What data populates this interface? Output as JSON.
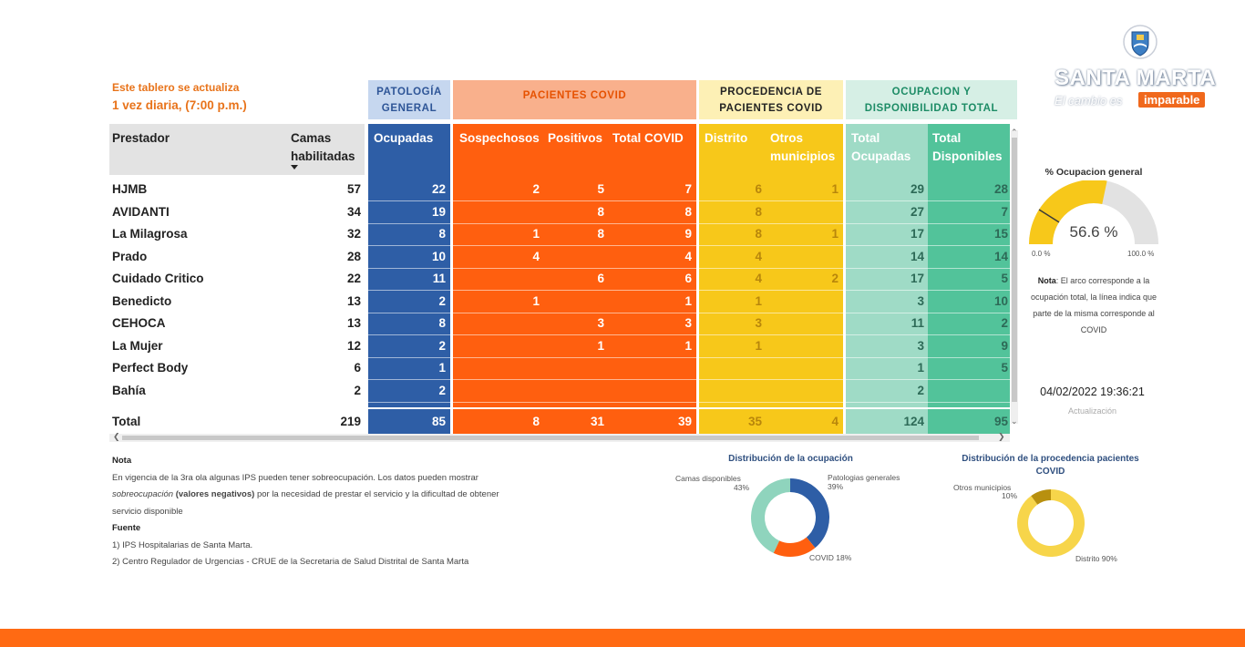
{
  "update_note": {
    "line1": "Este tablero se actualiza",
    "line2": "1 vez diaria, (7:00 p.m.)"
  },
  "groups": {
    "patologia": "PATOLOGÍA GENERAL",
    "covid": "PACIENTES COVID",
    "procedencia": "PROCEDENCIA DE PACIENTES COVID",
    "ocupacion": "OCUPACION Y DISPONIBILIDAD TOTAL"
  },
  "columns": {
    "prestador": "Prestador",
    "camas": "Camas habilitadas",
    "ocupadas": "Ocupadas",
    "sospechosos": "Sospechosos",
    "positivos": "Positivos",
    "total_covid": "Total COVID",
    "distrito": "Distrito",
    "otros": "Otros municipios",
    "total_ocupadas": "Total Ocupadas",
    "total_disponibles": "Total Disponibles"
  },
  "rows": [
    {
      "prestador": "HJMB",
      "camas": "57",
      "ocupadas": "22",
      "sospechosos": "2",
      "positivos": "5",
      "total_covid": "7",
      "distrito": "6",
      "otros": "1",
      "total_ocupadas": "29",
      "total_disponibles": "28"
    },
    {
      "prestador": "AVIDANTI",
      "camas": "34",
      "ocupadas": "19",
      "sospechosos": "",
      "positivos": "8",
      "total_covid": "8",
      "distrito": "8",
      "otros": "",
      "total_ocupadas": "27",
      "total_disponibles": "7"
    },
    {
      "prestador": "La Milagrosa",
      "camas": "32",
      "ocupadas": "8",
      "sospechosos": "1",
      "positivos": "8",
      "total_covid": "9",
      "distrito": "8",
      "otros": "1",
      "total_ocupadas": "17",
      "total_disponibles": "15"
    },
    {
      "prestador": "Prado",
      "camas": "28",
      "ocupadas": "10",
      "sospechosos": "4",
      "positivos": "",
      "total_covid": "4",
      "distrito": "4",
      "otros": "",
      "total_ocupadas": "14",
      "total_disponibles": "14"
    },
    {
      "prestador": "Cuidado Critico",
      "camas": "22",
      "ocupadas": "11",
      "sospechosos": "",
      "positivos": "6",
      "total_covid": "6",
      "distrito": "4",
      "otros": "2",
      "total_ocupadas": "17",
      "total_disponibles": "5"
    },
    {
      "prestador": "Benedicto",
      "camas": "13",
      "ocupadas": "2",
      "sospechosos": "1",
      "positivos": "",
      "total_covid": "1",
      "distrito": "1",
      "otros": "",
      "total_ocupadas": "3",
      "total_disponibles": "10"
    },
    {
      "prestador": "CEHOCA",
      "camas": "13",
      "ocupadas": "8",
      "sospechosos": "",
      "positivos": "3",
      "total_covid": "3",
      "distrito": "3",
      "otros": "",
      "total_ocupadas": "11",
      "total_disponibles": "2"
    },
    {
      "prestador": "La Mujer",
      "camas": "12",
      "ocupadas": "2",
      "sospechosos": "",
      "positivos": "1",
      "total_covid": "1",
      "distrito": "1",
      "otros": "",
      "total_ocupadas": "3",
      "total_disponibles": "9"
    },
    {
      "prestador": "Perfect Body",
      "camas": "6",
      "ocupadas": "1",
      "sospechosos": "",
      "positivos": "",
      "total_covid": "",
      "distrito": "",
      "otros": "",
      "total_ocupadas": "1",
      "total_disponibles": "5"
    },
    {
      "prestador": "Bahía",
      "camas": "2",
      "ocupadas": "2",
      "sospechosos": "",
      "positivos": "",
      "total_covid": "",
      "distrito": "",
      "otros": "",
      "total_ocupadas": "2",
      "total_disponibles": ""
    }
  ],
  "totals": {
    "prestador": "Total",
    "camas": "219",
    "ocupadas": "85",
    "sospechosos": "8",
    "positivos": "31",
    "total_covid": "39",
    "distrito": "35",
    "otros": "4",
    "total_ocupadas": "124",
    "total_disponibles": "95"
  },
  "brand": {
    "name": "SANTA MARTA",
    "slogan": "El cambio es",
    "badge": "imparable"
  },
  "gauge": {
    "title": "% Ocupacion general",
    "value_text": "56.6 %",
    "value": 56.6,
    "covid_marker": 18,
    "min_label": "0.0 %",
    "max_label": "100.0 %",
    "fill_color": "#f7c81a",
    "track_color": "#e2e2e2"
  },
  "gauge_note": {
    "bold": "Nota",
    "text": ": El arco corresponde a la ocupación total, la línea indica que parte de la misma corresponde al COVID"
  },
  "timestamp": {
    "value": "04/02/2022 19:36:21",
    "label": "Actualización"
  },
  "notes": {
    "title": "Nota",
    "line1": "En vigencia de la 3ra ola algunas IPS pueden tener sobreocupación. Los datos pueden mostrar",
    "line2_italic": "sobreocupación",
    "line2_bold": " (valores negativos)",
    "line2_rest": " por la necesidad de prestar el servicio y la dificultad de obtener",
    "line3": "servicio disponible",
    "source_title": "Fuente",
    "source1": "1) IPS Hospitalarias de Santa Marta.",
    "source2": "2) Centro Regulador de Urgencias - CRUE de la Secretaria de Salud Distrital de Santa Marta"
  },
  "chart_data": [
    {
      "type": "pie",
      "title": "Distribución de la ocupación",
      "categories": [
        "Patologias generales",
        "COVID",
        "Camas disponibles"
      ],
      "values": [
        39,
        18,
        43
      ],
      "colors": [
        "#2e5ea6",
        "#ff5f0f",
        "#8fd4bd"
      ],
      "labels": [
        "Patologias generales",
        "39%",
        "COVID 18%",
        "Camas disponibles",
        "43%"
      ]
    },
    {
      "type": "pie",
      "title": "Distribución de la procedencia pacientes COVID",
      "categories": [
        "Distrito",
        "Otros municipios"
      ],
      "values": [
        90,
        10
      ],
      "colors": [
        "#f7d54a",
        "#b8900f"
      ],
      "labels": [
        "Otros municipios",
        "10%",
        "Distrito 90%"
      ]
    }
  ]
}
